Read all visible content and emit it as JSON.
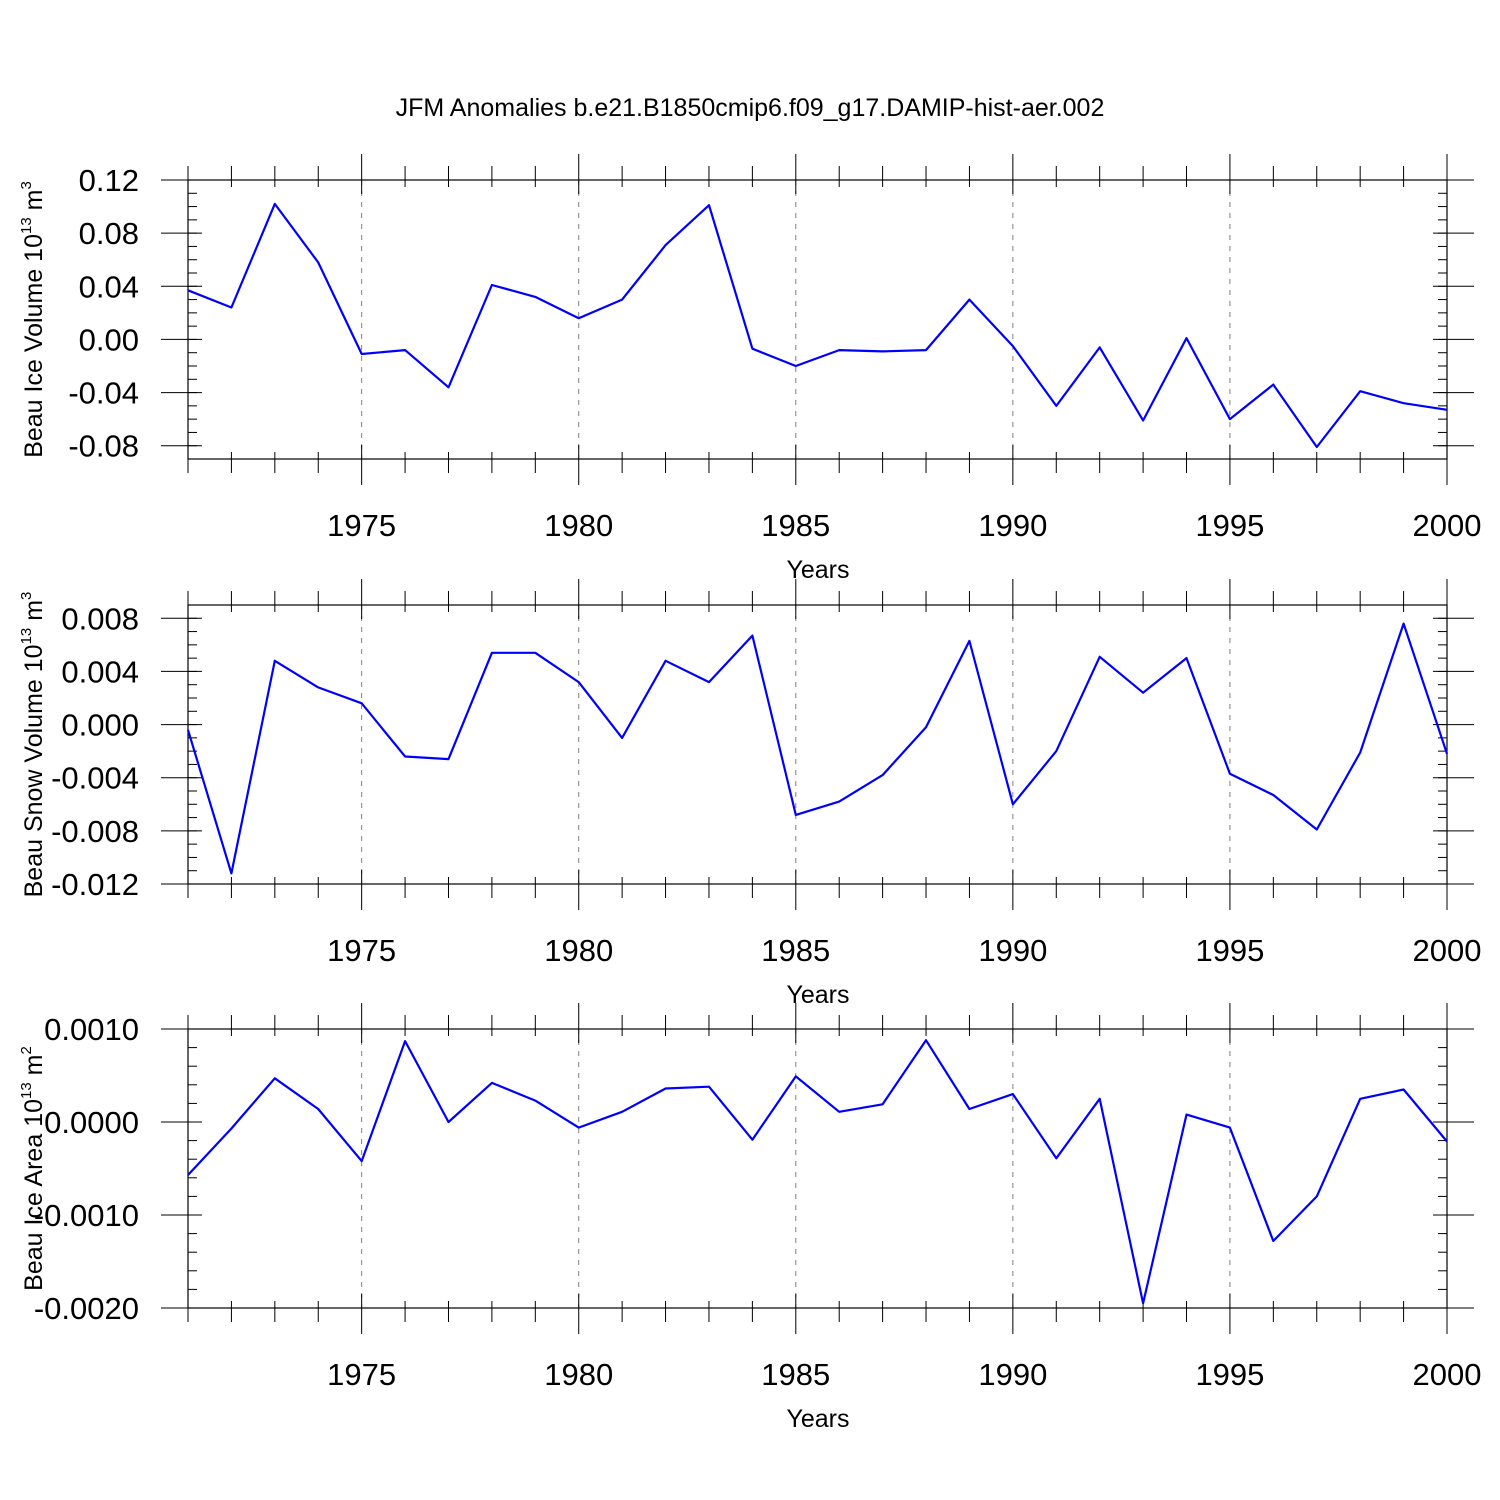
{
  "title": "JFM Anomalies b.e21.B1850cmip6.f09_g17.DAMIP-hist-aer.002",
  "colors": {
    "line": "#0000ff",
    "axis": "#000000",
    "grid": "#808080",
    "background": "#ffffff"
  },
  "chart_data": [
    {
      "type": "line",
      "series_name": "Beau Ice Volume",
      "ylabel_main": "Beau Ice Volume 10",
      "ylabel_exp": "13",
      "ylabel_unit": "m",
      "ylabel_unit_exp": "3",
      "xlabel": "Years",
      "xlim": [
        1971,
        2000
      ],
      "ylim": [
        -0.09,
        0.12
      ],
      "x_ticks": [
        1975,
        1980,
        1985,
        1990,
        1995,
        2000
      ],
      "x_tick_labels": [
        "1975",
        "1980",
        "1985",
        "1990",
        "1995",
        "2000"
      ],
      "y_ticks": [
        -0.08,
        -0.04,
        0.0,
        0.04,
        0.08,
        0.12
      ],
      "y_tick_labels": [
        "-0.08",
        "-0.04",
        "0.00",
        "0.04",
        "0.08",
        "0.12"
      ],
      "y_minor_step": 0.01,
      "grid": "x dashed at major ticks",
      "x": [
        1971,
        1972,
        1973,
        1974,
        1975,
        1976,
        1977,
        1978,
        1979,
        1980,
        1981,
        1982,
        1983,
        1984,
        1985,
        1986,
        1987,
        1988,
        1989,
        1990,
        1991,
        1992,
        1993,
        1994,
        1995,
        1996,
        1997,
        1998,
        1999,
        2000
      ],
      "values": [
        0.037,
        0.024,
        0.102,
        0.058,
        -0.011,
        -0.008,
        -0.036,
        0.041,
        0.032,
        0.016,
        0.03,
        0.071,
        0.101,
        -0.007,
        -0.02,
        -0.008,
        -0.009,
        -0.008,
        0.03,
        -0.005,
        -0.05,
        -0.006,
        -0.061,
        0.001,
        -0.06,
        -0.034,
        -0.081,
        -0.039,
        -0.048,
        -0.053
      ]
    },
    {
      "type": "line",
      "series_name": "Beau Snow Volume",
      "ylabel_main": "Beau Snow Volume 10",
      "ylabel_exp": "13",
      "ylabel_unit": "m",
      "ylabel_unit_exp": "3",
      "xlabel": "Years",
      "xlim": [
        1971,
        2000
      ],
      "ylim": [
        -0.012,
        0.009
      ],
      "x_ticks": [
        1975,
        1980,
        1985,
        1990,
        1995,
        2000
      ],
      "x_tick_labels": [
        "1975",
        "1980",
        "1985",
        "1990",
        "1995",
        "2000"
      ],
      "y_ticks": [
        -0.012,
        -0.008,
        -0.004,
        0.0,
        0.004,
        0.008
      ],
      "y_tick_labels": [
        "-0.012",
        "-0.008",
        "-0.004",
        "0.000",
        "0.004",
        "0.008"
      ],
      "y_minor_step": 0.001,
      "grid": "x dashed at major ticks",
      "x": [
        1971,
        1972,
        1973,
        1974,
        1975,
        1976,
        1977,
        1978,
        1979,
        1980,
        1981,
        1982,
        1983,
        1984,
        1985,
        1986,
        1987,
        1988,
        1989,
        1990,
        1991,
        1992,
        1993,
        1994,
        1995,
        1996,
        1997,
        1998,
        1999,
        2000
      ],
      "values": [
        -0.0004,
        -0.0112,
        0.0048,
        0.0028,
        0.0016,
        -0.0024,
        -0.0026,
        0.0054,
        0.0054,
        0.0032,
        -0.001,
        0.0048,
        0.0032,
        0.0067,
        -0.0068,
        -0.0058,
        -0.0038,
        -0.0002,
        0.0063,
        -0.006,
        -0.002,
        0.0051,
        0.0024,
        0.005,
        -0.0037,
        -0.0053,
        -0.0079,
        -0.0021,
        0.0076,
        -0.0022
      ]
    },
    {
      "type": "line",
      "series_name": "Beau Ice Area",
      "ylabel_main": "Beau Ice Area 10",
      "ylabel_exp": "13",
      "ylabel_unit": "m",
      "ylabel_unit_exp": "2",
      "xlabel": "Years",
      "xlim": [
        1971,
        2000
      ],
      "ylim": [
        -0.002,
        0.001
      ],
      "x_ticks": [
        1975,
        1980,
        1985,
        1990,
        1995,
        2000
      ],
      "x_tick_labels": [
        "1975",
        "1980",
        "1985",
        "1990",
        "1995",
        "2000"
      ],
      "y_ticks": [
        -0.002,
        -0.001,
        0.0,
        0.001
      ],
      "y_tick_labels": [
        "-0.0020",
        "-0.0010",
        "0.0000",
        "0.0010"
      ],
      "y_minor_step": 0.0002,
      "grid": "x dashed at major ticks",
      "x": [
        1971,
        1972,
        1973,
        1974,
        1975,
        1976,
        1977,
        1978,
        1979,
        1980,
        1981,
        1982,
        1983,
        1984,
        1985,
        1986,
        1987,
        1988,
        1989,
        1990,
        1991,
        1992,
        1993,
        1994,
        1995,
        1996,
        1997,
        1998,
        1999,
        2000
      ],
      "values": [
        -0.00057,
        -7e-05,
        0.00047,
        0.00014,
        -0.00042,
        0.00087,
        0.0,
        0.00042,
        0.00023,
        -6e-05,
        0.00011,
        0.00036,
        0.00038,
        -0.00019,
        0.00049,
        0.00011,
        0.00019,
        0.00088,
        0.00014,
        0.0003,
        -0.00039,
        0.00025,
        -0.00195,
        8e-05,
        -6e-05,
        -0.00128,
        -0.0008,
        0.00025,
        0.00035,
        -0.00021
      ]
    }
  ]
}
